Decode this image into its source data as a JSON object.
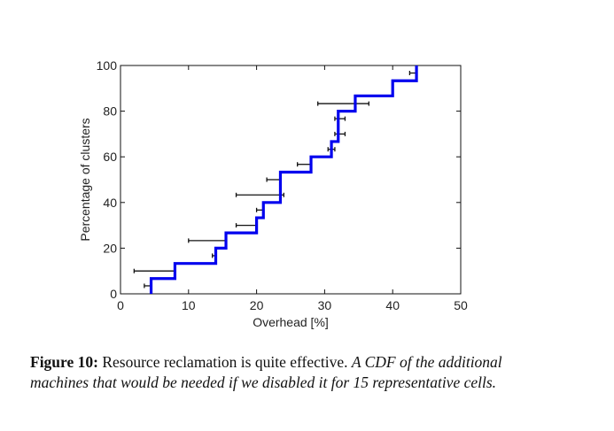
{
  "chart_data": {
    "type": "line",
    "step": true,
    "xlabel": "Overhead [%]",
    "ylabel": "Percentage of clusters",
    "xlim": [
      0,
      50
    ],
    "ylim": [
      0,
      100
    ],
    "xticks": [
      0,
      10,
      20,
      30,
      40,
      50
    ],
    "yticks": [
      0,
      20,
      40,
      60,
      80,
      100
    ],
    "grid": false,
    "series_color": "#0000ee",
    "errorbar_color": "#111111",
    "cdf_steps": [
      {
        "x": 4.5,
        "y": 6.7
      },
      {
        "x": 8.0,
        "y": 13.3
      },
      {
        "x": 14.0,
        "y": 20.0
      },
      {
        "x": 15.5,
        "y": 26.7
      },
      {
        "x": 20.0,
        "y": 33.3
      },
      {
        "x": 21.0,
        "y": 40.0
      },
      {
        "x": 23.5,
        "y": 53.3
      },
      {
        "x": 28.0,
        "y": 60.0
      },
      {
        "x": 31.0,
        "y": 66.7
      },
      {
        "x": 32.0,
        "y": 80.0
      },
      {
        "x": 34.5,
        "y": 86.7
      },
      {
        "x": 40.0,
        "y": 93.3
      },
      {
        "x": 43.5,
        "y": 100.0
      }
    ],
    "error_bars": [
      {
        "y": 3.5,
        "xmin": 3.5,
        "xmax": 4.5
      },
      {
        "y": 10.0,
        "xmin": 2.0,
        "xmax": 8.0
      },
      {
        "y": 16.7,
        "xmin": 13.5,
        "xmax": 14.0
      },
      {
        "y": 23.3,
        "xmin": 10.0,
        "xmax": 15.5
      },
      {
        "y": 30.0,
        "xmin": 17.0,
        "xmax": 20.0
      },
      {
        "y": 36.7,
        "xmin": 20.0,
        "xmax": 21.0
      },
      {
        "y": 43.3,
        "xmin": 17.0,
        "xmax": 24.0
      },
      {
        "y": 50.0,
        "xmin": 21.5,
        "xmax": 23.5
      },
      {
        "y": 56.7,
        "xmin": 26.0,
        "xmax": 28.0
      },
      {
        "y": 63.3,
        "xmin": 30.5,
        "xmax": 31.5
      },
      {
        "y": 70.0,
        "xmin": 31.5,
        "xmax": 33.0
      },
      {
        "y": 76.7,
        "xmin": 31.5,
        "xmax": 33.0
      },
      {
        "y": 83.3,
        "xmin": 29.0,
        "xmax": 36.5
      },
      {
        "y": 96.7,
        "xmin": 42.5,
        "xmax": 43.5
      }
    ]
  },
  "caption": {
    "label": "Figure 10:",
    "title": "Resource reclamation is quite effective.",
    "body": "A CDF of the additional machines that would be needed if we disabled it for 15 representative cells."
  }
}
